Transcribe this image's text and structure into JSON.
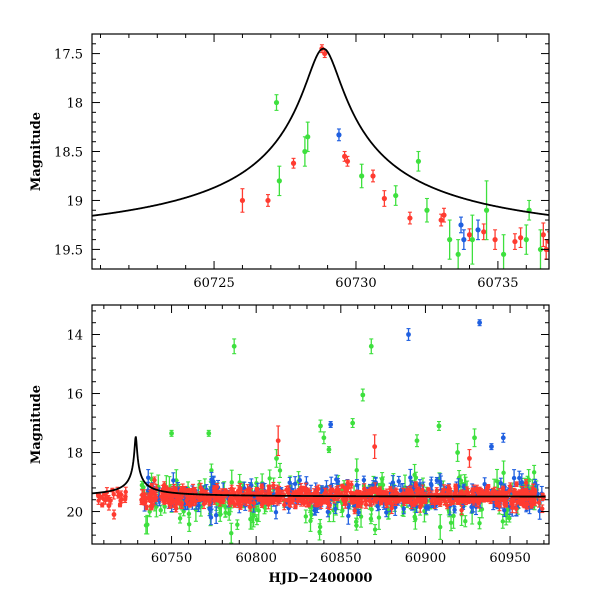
{
  "colors": {
    "red": "#ff3b30",
    "green": "#3ee03e",
    "blue": "#1f5fe0",
    "model": "#000000"
  },
  "chart_data": [
    {
      "type": "scatter",
      "panel": "top",
      "ylabel": "Magnitude",
      "xlabel": "",
      "xlim": [
        60720.7,
        60736.8
      ],
      "ylim": [
        19.7,
        17.3
      ],
      "xticks": [
        60725,
        60730,
        60735
      ],
      "yticks": [
        17.5,
        18,
        18.5,
        19,
        19.5
      ],
      "model": {
        "peak_x": 60728.85,
        "peak_mag": 17.45,
        "baseline_mag": 19.5,
        "width": 0.55
      },
      "series": [
        {
          "name": "red",
          "color": "red",
          "points": [
            [
              60726.0,
              19.0,
              0.12
            ],
            [
              60726.9,
              19.0,
              0.06
            ],
            [
              60727.8,
              18.62,
              0.05
            ],
            [
              60728.8,
              17.45,
              0.04
            ],
            [
              60728.9,
              17.5,
              0.04
            ],
            [
              60729.6,
              18.55,
              0.05
            ],
            [
              60729.7,
              18.6,
              0.05
            ],
            [
              60730.6,
              18.75,
              0.06
            ],
            [
              60731.0,
              18.98,
              0.08
            ],
            [
              60731.9,
              19.18,
              0.06
            ],
            [
              60733.0,
              19.2,
              0.06
            ],
            [
              60733.1,
              19.15,
              0.07
            ],
            [
              60734.0,
              19.35,
              0.06
            ],
            [
              60734.5,
              19.32,
              0.08
            ],
            [
              60734.9,
              19.4,
              0.1
            ],
            [
              60735.6,
              19.42,
              0.08
            ],
            [
              60735.8,
              19.38,
              0.1
            ],
            [
              60736.6,
              19.35,
              0.12
            ],
            [
              60736.7,
              19.5,
              0.1
            ],
            [
              60736.8,
              19.42,
              0.1
            ]
          ]
        },
        {
          "name": "green",
          "color": "green",
          "points": [
            [
              60727.2,
              18.0,
              0.08
            ],
            [
              60727.3,
              18.8,
              0.15
            ],
            [
              60728.2,
              18.5,
              0.15
            ],
            [
              60728.3,
              18.35,
              0.15
            ],
            [
              60730.2,
              18.75,
              0.12
            ],
            [
              60731.4,
              18.95,
              0.1
            ],
            [
              60732.2,
              18.6,
              0.1
            ],
            [
              60732.5,
              19.1,
              0.12
            ],
            [
              60733.3,
              19.4,
              0.2
            ],
            [
              60733.6,
              19.55,
              0.15
            ],
            [
              60734.1,
              19.4,
              0.25
            ],
            [
              60734.6,
              19.1,
              0.3
            ],
            [
              60735.2,
              19.55,
              0.2
            ],
            [
              60736.0,
              19.4,
              0.15
            ],
            [
              60736.1,
              19.1,
              0.1
            ],
            [
              60736.5,
              19.5,
              0.2
            ]
          ]
        },
        {
          "name": "blue",
          "color": "blue",
          "points": [
            [
              60729.4,
              18.33,
              0.06
            ],
            [
              60733.7,
              19.25,
              0.08
            ],
            [
              60733.8,
              19.4,
              0.1
            ],
            [
              60734.3,
              19.3,
              0.1
            ]
          ]
        }
      ]
    },
    {
      "type": "scatter",
      "panel": "bottom",
      "ylabel": "Magnitude",
      "xlabel": "HJD−2400000",
      "xlim": [
        60703,
        60973
      ],
      "ylim": [
        21.1,
        13.0
      ],
      "xticks": [
        60750,
        60800,
        60850,
        60900,
        60950
      ],
      "yticks": [
        14,
        16,
        18,
        20
      ],
      "model": {
        "peak_x": 60728.85,
        "peak_mag": 17.45,
        "baseline_mag": 19.5,
        "width": 0.55,
        "x_end": 60971
      },
      "outliers": {
        "green": [
          [
            60787,
            14.4,
            0.25
          ],
          [
            60868,
            14.4,
            0.25
          ],
          [
            60863,
            16.05,
            0.2
          ],
          [
            60750,
            17.35,
            0.1
          ],
          [
            60772,
            17.35,
            0.1
          ],
          [
            60838,
            17.1,
            0.2
          ],
          [
            60840,
            17.5,
            0.2
          ],
          [
            60857,
            17.0,
            0.15
          ],
          [
            60895,
            17.6,
            0.2
          ],
          [
            60908,
            17.1,
            0.15
          ],
          [
            60929,
            17.5,
            0.3
          ],
          [
            60843,
            17.9,
            0.1
          ],
          [
            60919,
            18.0,
            0.3
          ],
          [
            60812,
            18.2,
            0.3
          ]
        ],
        "blue": [
          [
            60890,
            14.0,
            0.2
          ],
          [
            60932,
            13.6,
            0.1
          ],
          [
            60844,
            17.05,
            0.1
          ],
          [
            60939,
            17.8,
            0.1
          ],
          [
            60946,
            17.5,
            0.15
          ]
        ],
        "red": [
          [
            60813,
            17.6,
            0.5
          ],
          [
            60870,
            17.8,
            0.4
          ],
          [
            60926,
            18.2,
            0.3
          ],
          [
            60711,
            19.6,
            0.15
          ],
          [
            60713,
            19.8,
            0.15
          ],
          [
            60716,
            20.1,
            0.15
          ]
        ]
      },
      "clouds": [
        {
          "color": "green",
          "x0": 60732,
          "x1": 60970,
          "count": 230,
          "center": 19.62,
          "spread": 0.42,
          "err": 0.3
        },
        {
          "color": "blue",
          "x0": 60732,
          "x1": 60970,
          "count": 260,
          "center": 19.45,
          "spread": 0.28,
          "err": 0.22
        },
        {
          "color": "red",
          "x0": 60732,
          "x1": 60970,
          "count": 650,
          "center": 19.5,
          "spread": 0.17,
          "err": 0.13
        },
        {
          "color": "red",
          "x0": 60706,
          "x1": 60724,
          "count": 22,
          "center": 19.5,
          "spread": 0.15,
          "err": 0.12
        }
      ]
    }
  ]
}
